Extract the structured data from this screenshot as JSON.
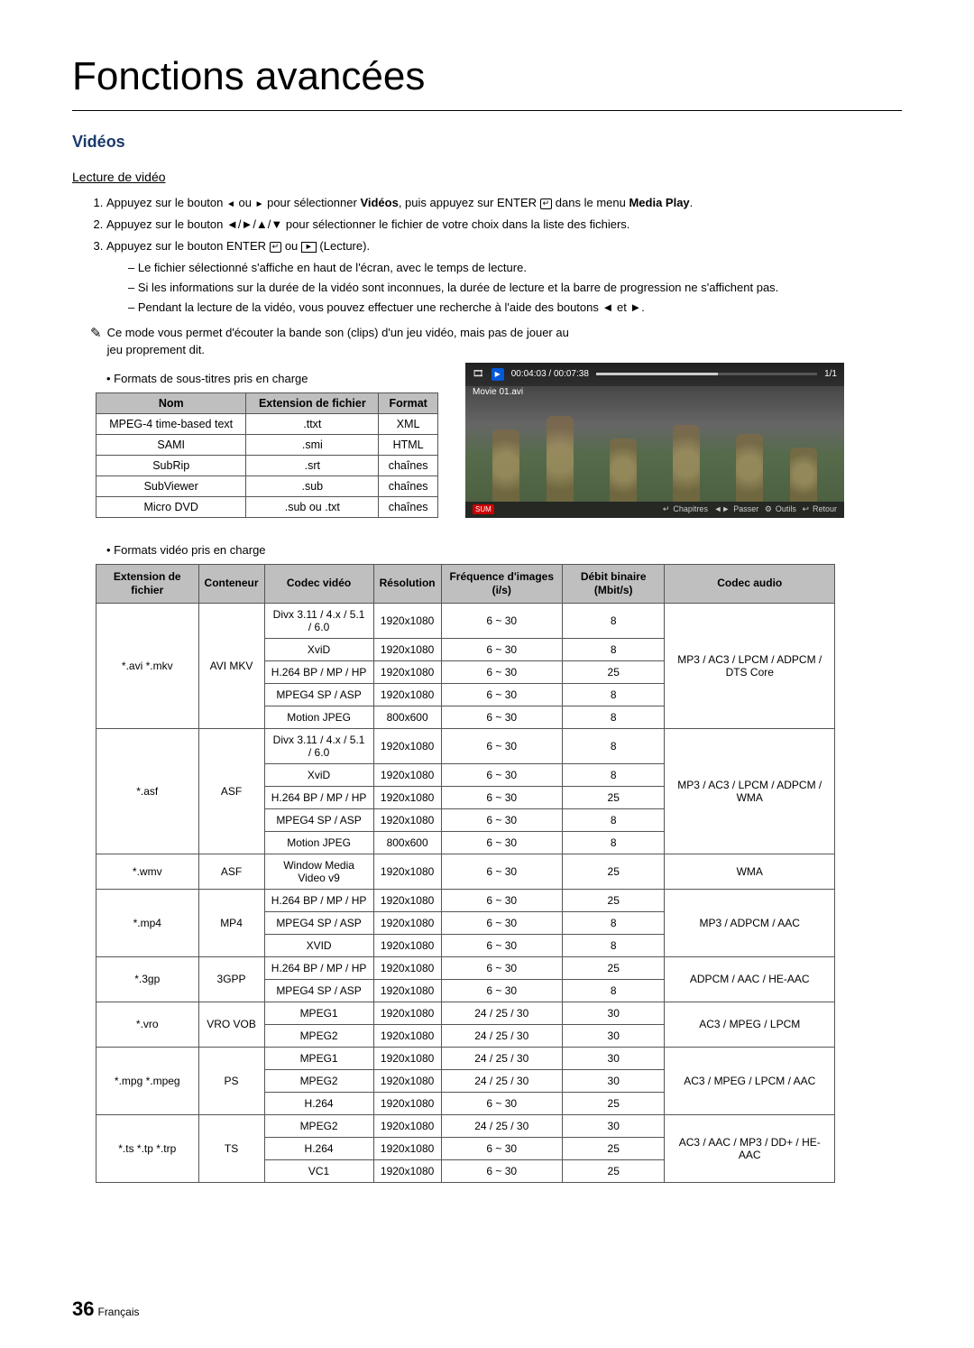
{
  "page_title": "Fonctions avancées",
  "section": "Vidéos",
  "sub_section": "Lecture de vidéo",
  "steps": [
    {
      "pre": "Appuyez sur le bouton ",
      "mid": " ou ",
      "post": " pour sélectionner ",
      "bold1": "Vidéos",
      "post2": ", puis appuyez sur ENTER ",
      "post3": " dans le menu ",
      "bold2": "Media Play",
      "end": "."
    },
    {
      "text": "Appuyez sur le bouton ◄/►/▲/▼ pour sélectionner le fichier de votre choix dans la liste des fichiers."
    },
    {
      "pre": "Appuyez sur le bouton ENTER ",
      "mid": " ou ",
      "post": " (Lecture)."
    }
  ],
  "dashes": [
    "Le fichier sélectionné s'affiche en haut de l'écran, avec le temps de lecture.",
    "Si les informations sur la durée de la vidéo sont inconnues, la durée de lecture et la barre de progression ne s'affichent pas.",
    "Pendant la lecture de la vidéo, vous pouvez effectuer une recherche à l'aide des boutons ◄ et ►."
  ],
  "note": "Ce mode vous permet d'écouter la bande son (clips) d'un jeu vidéo, mais pas de jouer au jeu proprement dit.",
  "bullet_subtitles": "Formats de sous-titres pris en charge",
  "subtitle_table": {
    "headers": [
      "Nom",
      "Extension de fichier",
      "Format"
    ],
    "rows": [
      [
        "MPEG-4 time-based text",
        ".ttxt",
        "XML"
      ],
      [
        "SAMI",
        ".smi",
        "HTML"
      ],
      [
        "SubRip",
        ".srt",
        "chaînes"
      ],
      [
        "SubViewer",
        ".sub",
        "chaînes"
      ],
      [
        "Micro DVD",
        ".sub ou .txt",
        "chaînes"
      ]
    ]
  },
  "preview": {
    "time": "00:04:03 / 00:07:38",
    "page": "1/1",
    "filename": "Movie 01.avi",
    "sum": "SUM",
    "actions": {
      "chapitres": "Chapitres",
      "passer": "Passer",
      "outils": "Outils",
      "retour": "Retour"
    }
  },
  "bullet_videos": "Formats vidéo pris en charge",
  "video_table": {
    "headers": [
      "Extension de fichier",
      "Conteneur",
      "Codec vidéo",
      "Résolution",
      "Fréquence d'images (i/s)",
      "Débit binaire (Mbit/s)",
      "Codec audio"
    ],
    "groups": [
      {
        "ext": "*.avi *.mkv",
        "cont": "AVI MKV",
        "audio": "MP3 / AC3 / LPCM / ADPCM / DTS Core",
        "rows": [
          [
            "Divx 3.11 / 4.x / 5.1 / 6.0",
            "1920x1080",
            "6 ~ 30",
            "8"
          ],
          [
            "XviD",
            "1920x1080",
            "6 ~ 30",
            "8"
          ],
          [
            "H.264 BP / MP / HP",
            "1920x1080",
            "6 ~ 30",
            "25"
          ],
          [
            "MPEG4 SP / ASP",
            "1920x1080",
            "6 ~ 30",
            "8"
          ],
          [
            "Motion JPEG",
            "800x600",
            "6 ~ 30",
            "8"
          ]
        ]
      },
      {
        "ext": "*.asf",
        "cont": "ASF",
        "audio": "MP3 / AC3 / LPCM / ADPCM / WMA",
        "rows": [
          [
            "Divx 3.11 / 4.x / 5.1 / 6.0",
            "1920x1080",
            "6 ~ 30",
            "8"
          ],
          [
            "XviD",
            "1920x1080",
            "6 ~ 30",
            "8"
          ],
          [
            "H.264 BP / MP / HP",
            "1920x1080",
            "6 ~ 30",
            "25"
          ],
          [
            "MPEG4 SP / ASP",
            "1920x1080",
            "6 ~ 30",
            "8"
          ],
          [
            "Motion JPEG",
            "800x600",
            "6 ~ 30",
            "8"
          ]
        ]
      },
      {
        "ext": "*.wmv",
        "cont": "ASF",
        "audio": "WMA",
        "rows": [
          [
            "Window Media Video v9",
            "1920x1080",
            "6 ~ 30",
            "25"
          ]
        ]
      },
      {
        "ext": "*.mp4",
        "cont": "MP4",
        "audio": "MP3 / ADPCM / AAC",
        "rows": [
          [
            "H.264 BP / MP / HP",
            "1920x1080",
            "6 ~ 30",
            "25"
          ],
          [
            "MPEG4 SP / ASP",
            "1920x1080",
            "6 ~ 30",
            "8"
          ],
          [
            "XVID",
            "1920x1080",
            "6 ~ 30",
            "8"
          ]
        ]
      },
      {
        "ext": "*.3gp",
        "cont": "3GPP",
        "audio": "ADPCM / AAC / HE-AAC",
        "rows": [
          [
            "H.264 BP / MP / HP",
            "1920x1080",
            "6 ~ 30",
            "25"
          ],
          [
            "MPEG4 SP / ASP",
            "1920x1080",
            "6 ~ 30",
            "8"
          ]
        ]
      },
      {
        "ext": "*.vro",
        "cont": "VRO VOB",
        "audio": "AC3 / MPEG / LPCM",
        "rows": [
          [
            "MPEG1",
            "1920x1080",
            "24 / 25 / 30",
            "30"
          ],
          [
            "MPEG2",
            "1920x1080",
            "24 / 25 / 30",
            "30"
          ]
        ]
      },
      {
        "ext": "*.mpg *.mpeg",
        "cont": "PS",
        "audio": "AC3 / MPEG / LPCM / AAC",
        "rows": [
          [
            "MPEG1",
            "1920x1080",
            "24 / 25 / 30",
            "30"
          ],
          [
            "MPEG2",
            "1920x1080",
            "24 / 25 / 30",
            "30"
          ],
          [
            "H.264",
            "1920x1080",
            "6 ~ 30",
            "25"
          ]
        ]
      },
      {
        "ext": "*.ts *.tp *.trp",
        "cont": "TS",
        "audio": "AC3 / AAC / MP3 / DD+ / HE-AAC",
        "rows": [
          [
            "MPEG2",
            "1920x1080",
            "24 / 25 / 30",
            "30"
          ],
          [
            "H.264",
            "1920x1080",
            "6 ~ 30",
            "25"
          ],
          [
            "VC1",
            "1920x1080",
            "6 ~ 30",
            "25"
          ]
        ]
      }
    ]
  },
  "page_number": "36",
  "page_lang": "Français"
}
